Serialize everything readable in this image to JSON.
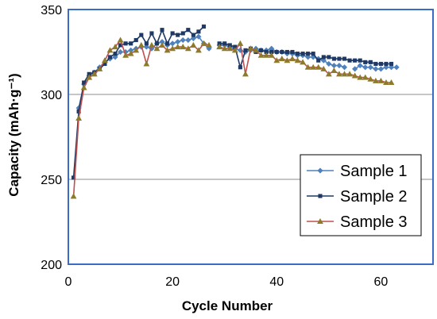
{
  "chart_data": {
    "type": "line",
    "xlabel": "Cycle Number",
    "ylabel": "Capacity (mAh·g⁻¹)",
    "xlim": [
      0,
      70
    ],
    "ylim": [
      200,
      350
    ],
    "xticks": [
      "0",
      "20",
      "40",
      "60"
    ],
    "yticks": [
      "200",
      "250",
      "300",
      "350"
    ],
    "grid": "horizontal",
    "legend_position": "right",
    "series": [
      {
        "name": "Sample 1",
        "color": "#4f81bd",
        "marker": "diamond",
        "segments": [
          {
            "x": [
              2,
              3,
              4,
              5,
              6,
              7,
              8,
              9,
              10,
              11,
              12,
              13,
              14,
              15,
              16,
              17,
              18,
              19,
              20,
              21,
              22,
              23,
              24,
              25,
              26,
              27
            ],
            "y": [
              292,
              306,
              311,
              313,
              316,
              319,
              321,
              322,
              325,
              325,
              326,
              327,
              328,
              328,
              327,
              330,
              331,
              329,
              330,
              331,
              332,
              332,
              333,
              334,
              330,
              327
            ]
          },
          {
            "x": [
              29,
              30,
              31,
              32,
              33,
              34,
              35,
              36,
              37,
              38,
              39,
              40,
              41,
              42,
              43,
              44,
              45,
              46,
              47,
              48,
              49,
              50,
              51,
              52,
              53
            ],
            "y": [
              329,
              329,
              328,
              327,
              326,
              325,
              326,
              327,
              326,
              326,
              327,
              325,
              325,
              324,
              324,
              323,
              323,
              322,
              322,
              321,
              320,
              318,
              317,
              317,
              316
            ]
          },
          {
            "x": [
              55,
              56,
              57,
              58,
              59,
              60,
              61,
              62,
              63
            ],
            "y": [
              315,
              317,
              316,
              316,
              315,
              315,
              316,
              316,
              316
            ]
          }
        ]
      },
      {
        "name": "Sample 2",
        "color": "#1f3864",
        "marker": "square",
        "segments": [
          {
            "x": [
              1,
              2,
              3,
              4,
              5,
              6,
              7,
              8,
              9,
              10,
              11,
              12,
              13,
              14,
              15,
              16,
              17,
              18,
              19,
              20,
              21,
              22,
              23,
              24,
              25,
              26
            ],
            "y": [
              251,
              290,
              307,
              312,
              313,
              315,
              318,
              322,
              324,
              329,
              330,
              330,
              332,
              335,
              330,
              336,
              330,
              338,
              330,
              336,
              335,
              336,
              338,
              335,
              337,
              340
            ]
          },
          {
            "x": [
              29,
              30,
              31,
              32,
              33,
              34,
              35,
              36,
              37,
              38,
              39,
              40,
              41,
              42,
              43,
              44,
              45,
              46,
              47,
              48,
              49,
              50,
              51,
              52,
              53,
              54,
              55,
              56,
              57,
              58,
              59,
              60,
              61,
              62
            ],
            "y": [
              330,
              330,
              329,
              328,
              316,
              326,
              327,
              325,
              326,
              325,
              325,
              325,
              325,
              325,
              325,
              324,
              324,
              324,
              324,
              320,
              322,
              322,
              321,
              321,
              321,
              320,
              320,
              320,
              319,
              319,
              318,
              318,
              318,
              318
            ]
          }
        ]
      },
      {
        "name": "Sample 3",
        "color": "#c0504d",
        "marker": "triangle",
        "markerFill": "#8c7b2a",
        "segments": [
          {
            "x": [
              1,
              2,
              3,
              4,
              5,
              6,
              7,
              8,
              9,
              10,
              11,
              12,
              13,
              14,
              15,
              16,
              17,
              18,
              19,
              20,
              21,
              22,
              23,
              24,
              25,
              26,
              27
            ],
            "y": [
              240,
              286,
              304,
              310,
              312,
              315,
              320,
              326,
              328,
              332,
              323,
              324,
              326,
              329,
              318,
              329,
              327,
              329,
              326,
              327,
              328,
              328,
              327,
              329,
              326,
              330,
              329
            ]
          },
          {
            "x": [
              29,
              30,
              31,
              32,
              33,
              34,
              35,
              36,
              37,
              38,
              39,
              40,
              41,
              42,
              43,
              44,
              45,
              46,
              47,
              48,
              49,
              50,
              51,
              52,
              53,
              54,
              55,
              56,
              57,
              58,
              59,
              60,
              61,
              62
            ],
            "y": [
              328,
              327,
              327,
              326,
              330,
              312,
              327,
              326,
              323,
              323,
              323,
              320,
              321,
              320,
              321,
              320,
              319,
              316,
              316,
              316,
              315,
              312,
              314,
              312,
              312,
              312,
              311,
              310,
              310,
              309,
              308,
              308,
              307,
              307
            ]
          }
        ]
      }
    ]
  }
}
